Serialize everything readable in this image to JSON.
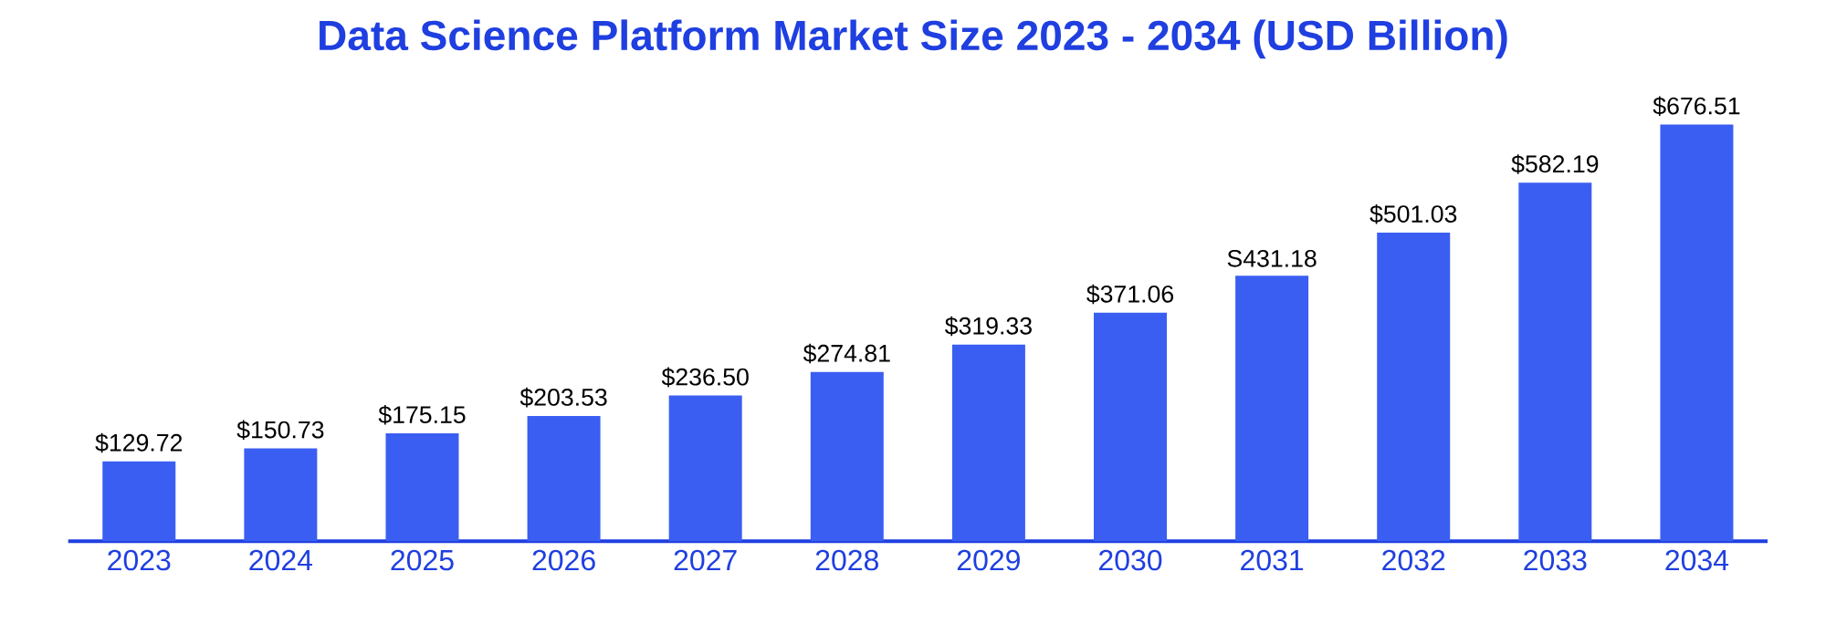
{
  "chart_data": {
    "type": "bar",
    "title": "Data Science Platform Market Size 2023 - 2034 (USD Billion)",
    "categories": [
      "2023",
      "2024",
      "2025",
      "2026",
      "2027",
      "2028",
      "2029",
      "2030",
      "2031",
      "2032",
      "2033",
      "2034"
    ],
    "values": [
      129.72,
      150.73,
      175.15,
      203.53,
      236.5,
      274.81,
      319.33,
      371.06,
      431.18,
      501.03,
      582.19,
      676.51
    ],
    "value_labels": [
      "$129.72",
      "$150.73",
      "$175.15",
      "$203.53",
      "$236.50",
      "$274.81",
      "$319.33",
      "$371.06",
      "S431.18",
      "$501.03",
      "$582.19",
      "$676.51"
    ],
    "color": "#3a5ef2"
  }
}
